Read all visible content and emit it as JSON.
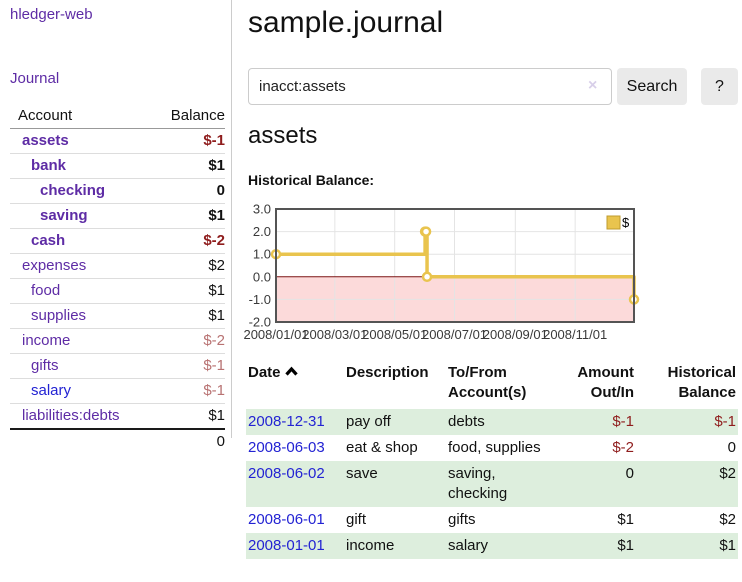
{
  "colors": {
    "link_purple": "#5e2ca5",
    "link_blue": "#2323d3",
    "negative_strong": "#8f1d1d",
    "negative_soft": "#b87272",
    "row_stripe_green": "#ddeedd",
    "chart_line_gold": "#e9c44e",
    "chart_negative_fill": "#fcdada",
    "chart_zero_line": "#7c1313"
  },
  "sidebar": {
    "app_title": "hledger-web",
    "journal_link": "Journal",
    "accounts_table": {
      "account_header": "Account",
      "balance_header": "Balance",
      "rows": [
        {
          "name": "assets",
          "indent": 1,
          "bold": true,
          "balance": "$-1",
          "balance_style": "neg-strong"
        },
        {
          "name": "bank",
          "indent": 2,
          "bold": true,
          "balance": "$1",
          "balance_style": "pos"
        },
        {
          "name": "checking",
          "indent": 3,
          "bold": true,
          "balance": "0",
          "balance_style": "pos"
        },
        {
          "name": "saving",
          "indent": 3,
          "bold": true,
          "balance": "$1",
          "balance_style": "pos"
        },
        {
          "name": "cash",
          "indent": 2,
          "bold": true,
          "balance": "$-2",
          "balance_style": "neg-strong"
        },
        {
          "name": "expenses",
          "indent": 1,
          "bold": false,
          "balance": "$2",
          "balance_style": "pos"
        },
        {
          "name": "food",
          "indent": 2,
          "bold": false,
          "balance": "$1",
          "balance_style": "pos"
        },
        {
          "name": "supplies",
          "indent": 2,
          "bold": false,
          "balance": "$1",
          "balance_style": "pos"
        },
        {
          "name": "income",
          "indent": 1,
          "bold": false,
          "balance": "$-2",
          "balance_style": "neg-soft"
        },
        {
          "name": "gifts",
          "indent": 2,
          "bold": false,
          "balance": "$-1",
          "balance_style": "neg-soft"
        },
        {
          "name": "salary",
          "indent": 2,
          "bold": false,
          "balance": "$-1",
          "balance_style": "neg-soft",
          "link_color": "blue"
        },
        {
          "name": "liabilities:debts",
          "indent": 1,
          "bold": false,
          "balance": "$1",
          "balance_style": "pos"
        }
      ],
      "total": "0"
    }
  },
  "main": {
    "page_title": "sample.journal",
    "search": {
      "value": "inacct:assets",
      "clear_icon": "×",
      "search_button": "Search",
      "help_button": "?"
    },
    "account_heading": "assets",
    "chart_label": "Historical Balance:",
    "register_table": {
      "headers": {
        "date": "Date",
        "description": "Description",
        "account": "To/From Account(s)",
        "amount": "Amount Out/In",
        "balance": "Historical Balance"
      },
      "rows": [
        {
          "date": "2008-12-31",
          "description": "pay off",
          "accounts": "debts",
          "amount": "$-1",
          "amount_neg": true,
          "balance": "$-1",
          "balance_neg": true
        },
        {
          "date": "2008-06-03",
          "description": "eat & shop",
          "accounts": "food, supplies",
          "amount": "$-2",
          "amount_neg": true,
          "balance": "0",
          "balance_neg": false
        },
        {
          "date": "2008-06-02",
          "description": "save",
          "accounts": "saving, checking",
          "amount": "0",
          "amount_neg": false,
          "balance": "$2",
          "balance_neg": false
        },
        {
          "date": "2008-06-01",
          "description": "gift",
          "accounts": "gifts",
          "amount": "$1",
          "amount_neg": false,
          "balance": "$2",
          "balance_neg": false
        },
        {
          "date": "2008-01-01",
          "description": "income",
          "accounts": "salary",
          "amount": "$1",
          "amount_neg": false,
          "balance": "$1",
          "balance_neg": false
        }
      ]
    }
  },
  "chart_data": {
    "type": "line",
    "title": "Historical Balance:",
    "step": true,
    "series": [
      {
        "name": "$",
        "points": [
          [
            "2008-01-01",
            1
          ],
          [
            "2008-06-01",
            2
          ],
          [
            "2008-06-02",
            2
          ],
          [
            "2008-06-03",
            0
          ],
          [
            "2008-12-31",
            -1
          ]
        ]
      }
    ],
    "x_range": [
      "2008-01-01",
      "2008-12-31"
    ],
    "x_ticks": [
      "2008/01/01",
      "2008/03/01",
      "2008/05/01",
      "2008/07/01",
      "2008/09/01",
      "2008/11/01"
    ],
    "y_ticks": [
      3.0,
      2.0,
      1.0,
      0.0,
      -1.0,
      -2.0
    ],
    "ylim": [
      -2,
      3
    ],
    "grid": true,
    "legend_position": "top-right",
    "negative_region_shaded": true
  }
}
